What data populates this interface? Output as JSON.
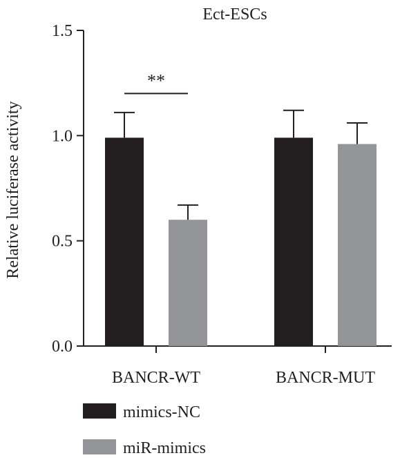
{
  "chart_data": {
    "type": "bar",
    "title": "Ect-ESCs",
    "xlabel": "",
    "ylabel": "Relative luciferase activity",
    "ylim": [
      0,
      1.5
    ],
    "yticks": [
      {
        "value": 0.0,
        "label": "0.0"
      },
      {
        "value": 0.5,
        "label": "0.5"
      },
      {
        "value": 1.0,
        "label": "1.0"
      },
      {
        "value": 1.5,
        "label": "1.5"
      }
    ],
    "categories": [
      "BANCR-WT",
      "BANCR-MUT"
    ],
    "series": [
      {
        "name": "mimics-NC",
        "color": "#231f20",
        "values": [
          0.99,
          0.99
        ],
        "errors": [
          0.12,
          0.13
        ]
      },
      {
        "name": "miR-mimics",
        "color": "#939598",
        "values": [
          0.6,
          0.96
        ],
        "errors": [
          0.07,
          0.1
        ]
      }
    ],
    "annotations": [
      {
        "text": "**",
        "category_index": 0,
        "y": 1.2
      }
    ],
    "legend_position": "bottom-left",
    "grid": false
  }
}
